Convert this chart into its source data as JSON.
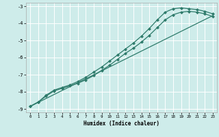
{
  "xlabel": "Humidex (Indice chaleur)",
  "xlim": [
    -0.5,
    23.5
  ],
  "ylim": [
    -9.2,
    -2.8
  ],
  "xticks": [
    0,
    1,
    2,
    3,
    4,
    5,
    6,
    7,
    8,
    9,
    10,
    11,
    12,
    13,
    14,
    15,
    16,
    17,
    18,
    19,
    20,
    21,
    22,
    23
  ],
  "yticks": [
    -9,
    -8,
    -7,
    -6,
    -5,
    -4,
    -3
  ],
  "bg_color": "#ceecea",
  "grid_color": "#ffffff",
  "line_color": "#2d7a6a",
  "line_straight": {
    "x": [
      0,
      23
    ],
    "y": [
      -8.85,
      -3.55
    ]
  },
  "line_upper": {
    "x": [
      0,
      1,
      2,
      3,
      4,
      5,
      6,
      7,
      8,
      9,
      10,
      11,
      12,
      13,
      14,
      15,
      16,
      17,
      18,
      19,
      20,
      21,
      22,
      23
    ],
    "y": [
      -8.85,
      -8.6,
      -8.2,
      -7.9,
      -7.75,
      -7.6,
      -7.4,
      -7.15,
      -6.85,
      -6.55,
      -6.2,
      -5.85,
      -5.5,
      -5.15,
      -4.75,
      -4.3,
      -3.8,
      -3.35,
      -3.15,
      -3.1,
      -3.15,
      -3.2,
      -3.3,
      -3.45
    ]
  },
  "line_lower": {
    "x": [
      0,
      1,
      2,
      3,
      4,
      5,
      6,
      7,
      8,
      9,
      10,
      11,
      12,
      13,
      14,
      15,
      16,
      17,
      18,
      19,
      20,
      21,
      22,
      23
    ],
    "y": [
      -8.85,
      -8.6,
      -8.25,
      -7.95,
      -7.8,
      -7.65,
      -7.5,
      -7.3,
      -7.05,
      -6.75,
      -6.45,
      -6.1,
      -5.75,
      -5.45,
      -5.1,
      -4.7,
      -4.25,
      -3.8,
      -3.5,
      -3.35,
      -3.3,
      -3.35,
      -3.45,
      -3.6
    ]
  },
  "markersize": 2.2,
  "linewidth": 0.9
}
